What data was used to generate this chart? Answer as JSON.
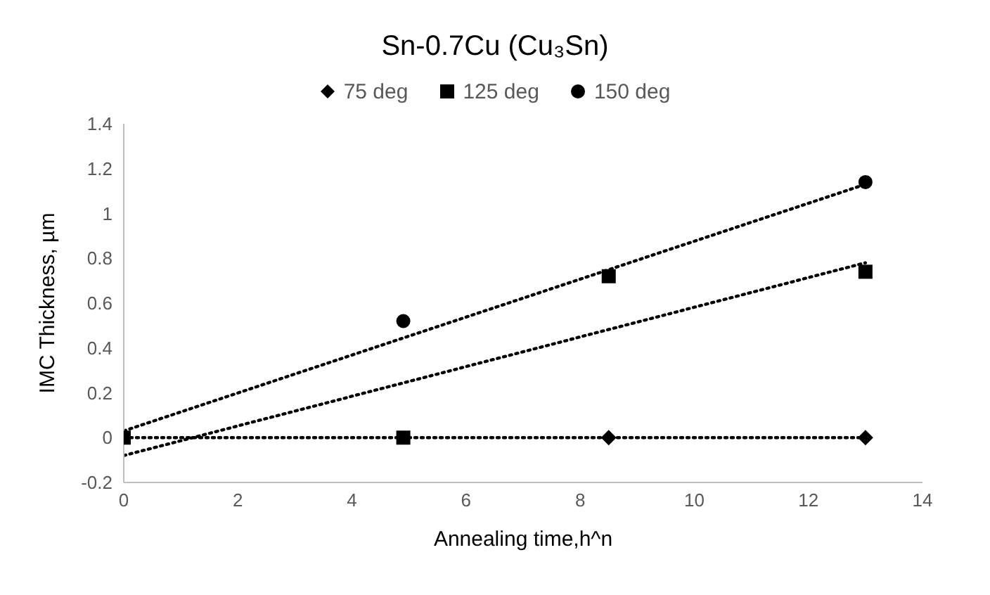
{
  "chart_data": {
    "type": "scatter",
    "title": "Sn-0.7Cu (Cu₃Sn)",
    "xlabel": "Annealing time,h^n",
    "ylabel": "IMC Thickness, µm",
    "xlim": [
      0,
      14
    ],
    "xticks": [
      0,
      2,
      4,
      6,
      8,
      10,
      12,
      14
    ],
    "ylim": [
      -0.2,
      1.4
    ],
    "yticks": [
      -0.2,
      0,
      0.2,
      0.4,
      0.6,
      0.8,
      1,
      1.2,
      1.4
    ],
    "grid": false,
    "legend": "top",
    "series": [
      {
        "name": "75 deg",
        "marker": "diamond",
        "color": "#000000",
        "x": [
          8.5,
          13
        ],
        "values": [
          0,
          0
        ]
      },
      {
        "name": "125 deg",
        "marker": "square",
        "color": "#000000",
        "x": [
          0,
          4.9,
          8.5,
          13
        ],
        "values": [
          0,
          0,
          0.72,
          0.74
        ]
      },
      {
        "name": "150 deg",
        "marker": "circle",
        "color": "#000000",
        "x": [
          4.9,
          13
        ],
        "values": [
          0.52,
          1.14
        ]
      },
      {
        "type": "line",
        "marker": "none",
        "line_style": "dotted",
        "color": "#000000",
        "x": [
          0,
          13
        ],
        "values": [
          0,
          0
        ]
      },
      {
        "type": "line",
        "marker": "none",
        "line_style": "dotted",
        "color": "#000000",
        "x": [
          0,
          13
        ],
        "values": [
          -0.08,
          0.78
        ]
      },
      {
        "type": "line",
        "marker": "none",
        "line_style": "dotted",
        "color": "#000000",
        "x": [
          0,
          13
        ],
        "values": [
          0.03,
          1.13
        ]
      }
    ]
  }
}
